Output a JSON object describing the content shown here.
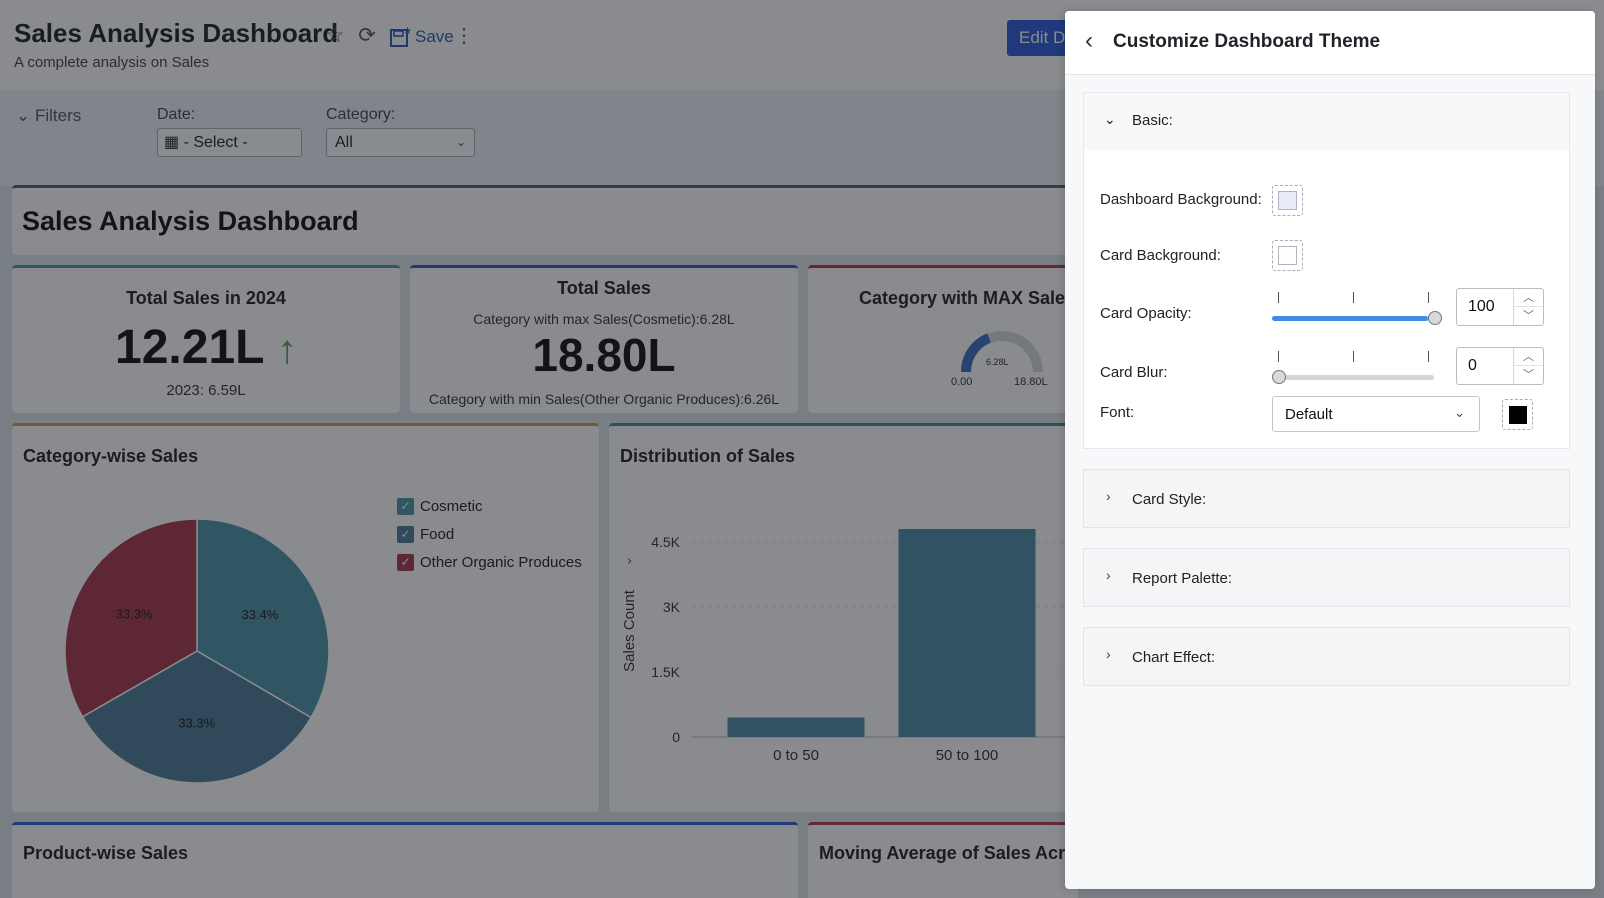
{
  "topbar": {
    "title": "Sales Analysis Dashboard",
    "subtitle": "A complete analysis on Sales",
    "save_label": "Save",
    "edit_label": "Edit Da"
  },
  "filters": {
    "toggle_label": "Filters",
    "date_label": "Date:",
    "date_value": "- Select -",
    "category_label": "Category:",
    "category_value": "All"
  },
  "header_card": {
    "title": "Sales Analysis Dashboard"
  },
  "kpi1": {
    "title": "Total Sales in 2024",
    "value": "12.21L",
    "compare": "2023: 6.59L",
    "trend_color": "#5aa05a"
  },
  "kpi2": {
    "title": "Total Sales",
    "max_line": "Category with max Sales(Cosmetic):6.28L",
    "value": "18.80L",
    "min_line": "Category with min Sales(Other Organic Produces):6.26L"
  },
  "kpi3": {
    "title": "Category with MAX Sales(C",
    "gauge_value": "6.28L",
    "gauge_min": "0.00",
    "gauge_max": "18.80L"
  },
  "pie_card": {
    "title": "Category-wise Sales",
    "slices": [
      {
        "name": "Cosmetic",
        "label": "33.4%",
        "value": 33.4,
        "color": "#4c95aa"
      },
      {
        "name": "Food",
        "label": "33.3%",
        "value": 33.3,
        "color": "#4d7c98"
      },
      {
        "name": "Other Organic Produces",
        "label": "33.3%",
        "value": 33.3,
        "color": "#a8364f"
      }
    ],
    "check_mark": "✓"
  },
  "bar_card": {
    "title": "Distribution of Sales",
    "ylabel": "Sales Count",
    "ticks": [
      "4.5K",
      "3K",
      "1.5K",
      "0"
    ],
    "chart_data": {
      "type": "bar",
      "categories": [
        "0 to 50",
        "50 to 100"
      ],
      "values": [
        450,
        4800
      ],
      "ylabel": "Sales Count",
      "ylim": [
        0,
        4800
      ],
      "color": "#4a8fa8"
    }
  },
  "product_card": {
    "title": "Product-wise Sales"
  },
  "moving_card": {
    "title": "Moving Average of Sales Across"
  },
  "panel": {
    "title": "Customize Dashboard Theme",
    "basic": {
      "label": "Basic:",
      "dashboard_bg_label": "Dashboard Background:",
      "dashboard_bg_color": "#e8ecf9",
      "card_bg_label": "Card Background:",
      "card_bg_color": "#ffffff",
      "opacity_label": "Card Opacity:",
      "opacity_value": "100",
      "blur_label": "Card Blur:",
      "blur_value": "0",
      "font_label": "Font:",
      "font_value": "Default",
      "font_color": "#000000"
    },
    "sections": [
      "Card Style:",
      "Report Palette:",
      "Chart Effect:"
    ]
  }
}
